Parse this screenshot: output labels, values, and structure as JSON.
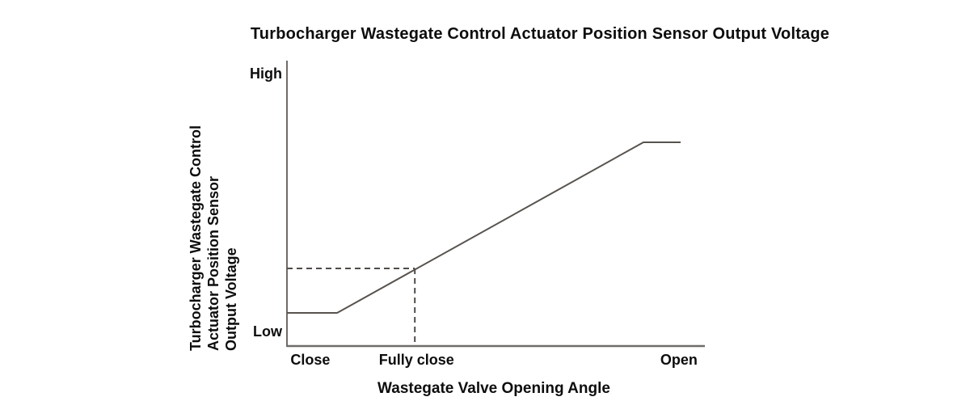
{
  "chart_data": {
    "type": "line",
    "title": "Turbocharger Wastegate Control Actuator Position Sensor Output Voltage",
    "xlabel": "Wastegate Valve Opening Angle",
    "ylabel": "Turbocharger Wastegate Control Actuator Position Sensor Output Voltage",
    "ylabel_lines": [
      "Turbocharger Wastegate Control",
      "Actuator Position Sensor",
      "Output Voltage"
    ],
    "x_axis": {
      "kind": "qualitative",
      "range": [
        0,
        1
      ],
      "ticks": [
        {
          "label": "Close",
          "x": 0.056
        },
        {
          "label": "Fully close",
          "x": 0.31
        },
        {
          "label": "Open",
          "x": 0.938
        }
      ]
    },
    "y_axis": {
      "kind": "qualitative",
      "range": [
        0,
        1
      ],
      "ticks": [
        {
          "label": "High",
          "y": 0.955
        },
        {
          "label": "Low",
          "y": 0.051
        }
      ]
    },
    "series": [
      {
        "name": "actuator-position-sensor-output-voltage",
        "points": [
          {
            "x": 0.0,
            "y": 0.116
          },
          {
            "x": 0.12,
            "y": 0.116
          },
          {
            "x": 0.853,
            "y": 0.714
          },
          {
            "x": 0.942,
            "y": 0.714
          }
        ]
      }
    ],
    "guide": {
      "style": "dashed",
      "x": 0.306,
      "y": 0.272
    },
    "grid": false,
    "legend": false,
    "colors": {
      "curve": "#58534f",
      "axis": "#6f6b68",
      "guide": "#4f4b48",
      "text": "#0d0d0d",
      "background": "#ffffff"
    }
  }
}
